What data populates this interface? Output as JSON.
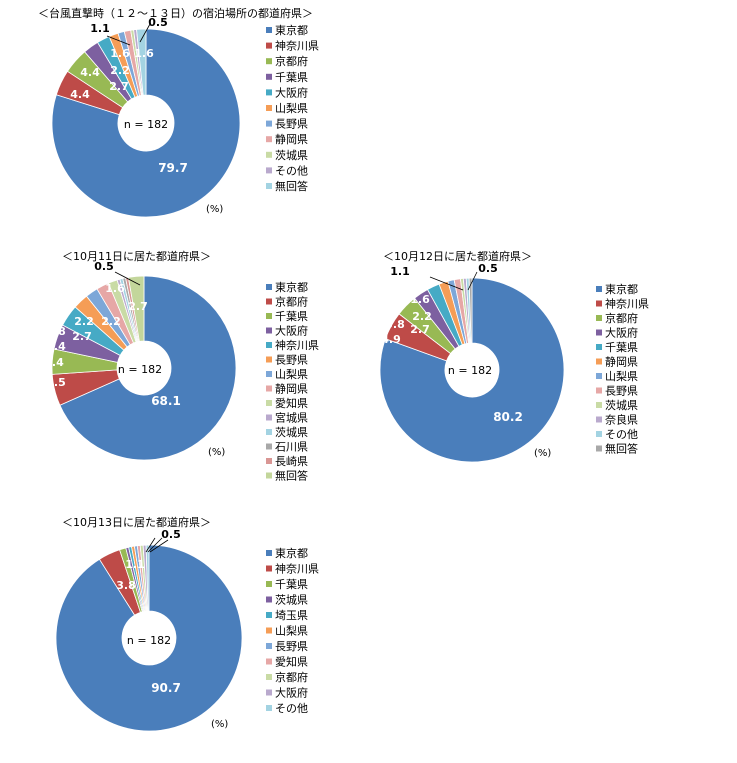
{
  "chart_data": [
    {
      "type": "pie",
      "title": "＜台風直撃時（１２～１３日）の宿泊場所の都道府県＞",
      "unit": "(%)",
      "n_label": "n = 182",
      "categories": [
        "東京都",
        "神奈川県",
        "京都府",
        "千葉県",
        "大阪府",
        "山梨県",
        "長野県",
        "静岡県",
        "茨城県",
        "その他",
        "無回答"
      ],
      "values": [
        79.7,
        4.4,
        4.4,
        2.7,
        2.2,
        1.6,
        1.1,
        1.1,
        0.5,
        0.5,
        1.6
      ],
      "data_labels": [
        "79.7",
        "4.4",
        "4.4",
        "2.7",
        "2.2",
        "1.6",
        "1.1",
        "",
        "",
        "0.5",
        "1.6"
      ]
    },
    {
      "type": "pie",
      "title": "＜10月11日に居た都道府県＞",
      "unit": "(%)",
      "n_label": "n = 182",
      "categories": [
        "東京都",
        "京都府",
        "千葉県",
        "大阪府",
        "神奈川県",
        "長野県",
        "山梨県",
        "静岡県",
        "愛知県",
        "宮城県",
        "茨城県",
        "石川県",
        "長崎県",
        "無回答"
      ],
      "values": [
        68.1,
        5.5,
        4.4,
        4.4,
        3.8,
        2.7,
        2.2,
        2.2,
        1.6,
        0.5,
        0.5,
        0.5,
        0.5,
        2.7
      ],
      "data_labels": [
        "68.1",
        "5.5",
        "4.4",
        "4.4",
        "3.8",
        "2.7",
        "2.2",
        "2.2",
        "1.6",
        "",
        "",
        "",
        "0.5",
        "2.7"
      ]
    },
    {
      "type": "pie",
      "title": "＜10月12日に居た都道府県＞",
      "unit": "(%)",
      "n_label": "n = 182",
      "categories": [
        "東京都",
        "神奈川県",
        "京都府",
        "大阪府",
        "千葉県",
        "静岡県",
        "山梨県",
        "長野県",
        "茨城県",
        "奈良県",
        "その他",
        "無回答"
      ],
      "values": [
        80.2,
        4.9,
        3.8,
        2.7,
        2.2,
        1.6,
        1.1,
        1.1,
        0.5,
        0.5,
        0.5,
        0.5
      ],
      "data_labels": [
        "80.2",
        "4.9",
        "3.8",
        "2.7",
        "2.2",
        "1.6",
        "1.1",
        "",
        "",
        "",
        "",
        "0.5"
      ]
    },
    {
      "type": "pie",
      "title": "＜10月13日に居た都道府県＞",
      "unit": "(%)",
      "n_label": "n = 182",
      "categories": [
        "東京都",
        "神奈川県",
        "千葉県",
        "茨城県",
        "埼玉県",
        "山梨県",
        "長野県",
        "愛知県",
        "京都府",
        "大阪府",
        "その他"
      ],
      "values": [
        90.7,
        3.8,
        1.1,
        0.5,
        0.5,
        0.5,
        0.5,
        0.5,
        0.5,
        0.5,
        0.5
      ],
      "data_labels": [
        "90.7",
        "3.8",
        "1.1",
        "",
        "",
        "",
        "",
        "",
        "",
        "",
        "0.5"
      ]
    }
  ]
}
